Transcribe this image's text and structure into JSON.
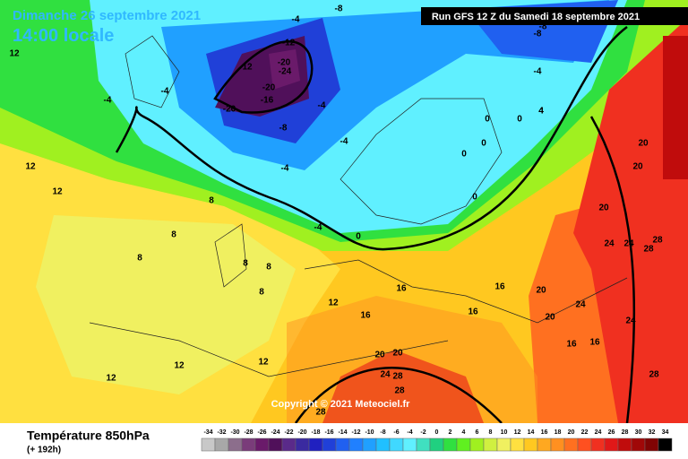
{
  "header": {
    "date": "Dimanche 26 septembre 2021",
    "time": "14:00 locale",
    "run": "Run GFS 12 Z du Samedi 18 septembre 2021"
  },
  "footer": {
    "title": "Température 850hPa",
    "lead": "(+ 192h)",
    "copyright": "Copyright © 2021 Meteociel.fr"
  },
  "scale": {
    "values": [
      -34,
      -32,
      -30,
      -28,
      -26,
      -24,
      -22,
      -20,
      -18,
      -16,
      -14,
      -12,
      -10,
      -8,
      -6,
      -4,
      -2,
      0,
      2,
      4,
      6,
      8,
      10,
      12,
      14,
      16,
      18,
      20,
      22,
      24,
      26,
      28,
      30,
      32,
      34
    ],
    "colors": [
      "#c8c8c8",
      "#a8a8a8",
      "#8c6e8c",
      "#7a3c7a",
      "#6a1a6a",
      "#50105a",
      "#5a2a8a",
      "#3a2aa0",
      "#2020c0",
      "#2040d8",
      "#2060f0",
      "#2080ff",
      "#20a0ff",
      "#20c0ff",
      "#40d8ff",
      "#60f0ff",
      "#40e0c0",
      "#20d080",
      "#30e040",
      "#60f020",
      "#a0f020",
      "#d0f040",
      "#f0f060",
      "#ffe040",
      "#ffc820",
      "#ffa820",
      "#ff9020",
      "#ff7020",
      "#ff5020",
      "#f03020",
      "#e01818",
      "#c00c0c",
      "#a00808",
      "#800404",
      "#000000"
    ]
  },
  "contour_labels": [
    "-8",
    "-4",
    "-12",
    "-20",
    "-24",
    "-20",
    "-16",
    "-20",
    "12",
    "-8",
    "-4",
    "-4",
    "-4",
    "0",
    "-4",
    "-8",
    "-4",
    "0",
    "0",
    "0",
    "0",
    "4",
    "0",
    "8",
    "8",
    "8",
    "8",
    "8",
    "8",
    "12",
    "12",
    "12",
    "12",
    "16",
    "16",
    "16",
    "16",
    "16",
    "20",
    "20",
    "24",
    "24",
    "28",
    "28",
    "28",
    "24",
    "20",
    "24",
    "28",
    "12",
    "12",
    "12",
    "16",
    "20",
    "24",
    "28",
    "28",
    "20",
    "20",
    "20",
    "-8",
    "-4",
    "-4",
    "4"
  ]
}
